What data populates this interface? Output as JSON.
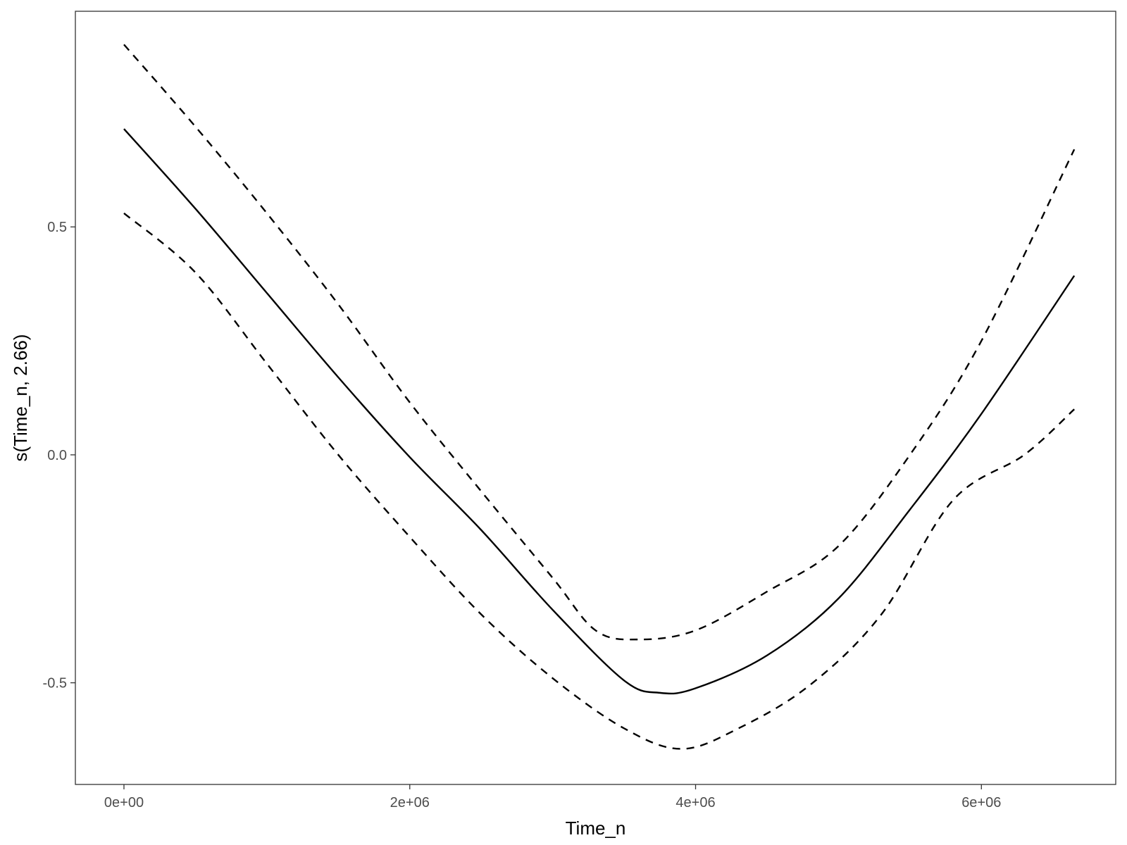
{
  "chart_data": {
    "type": "line",
    "title": "",
    "xlabel": "Time_n",
    "ylabel": "s(Time_n, 2.66)",
    "xlim": [
      -340000,
      6940000
    ],
    "ylim": [
      -0.723,
      0.973
    ],
    "grid": false,
    "x_ticks": [
      0,
      2000000,
      4000000,
      6000000
    ],
    "x_tick_labels": [
      "0e+00",
      "2e+06",
      "4e+06",
      "6e+06"
    ],
    "y_ticks": [
      -0.5,
      0.0,
      0.5
    ],
    "y_tick_labels": [
      "-0.5",
      "0.0",
      "0.5"
    ],
    "series": [
      {
        "style": "solid",
        "points": [
          [
            0,
            0.715
          ],
          [
            500000,
            0.54
          ],
          [
            1000000,
            0.355
          ],
          [
            1500000,
            0.17
          ],
          [
            2000000,
            -0.005
          ],
          [
            2500000,
            -0.165
          ],
          [
            3000000,
            -0.34
          ],
          [
            3500000,
            -0.495
          ],
          [
            3750000,
            -0.522
          ],
          [
            4000000,
            -0.512
          ],
          [
            4500000,
            -0.44
          ],
          [
            5000000,
            -0.315
          ],
          [
            5500000,
            -0.12
          ],
          [
            6000000,
            0.09
          ],
          [
            6650000,
            0.393
          ]
        ]
      },
      {
        "style": "dashed",
        "points": [
          [
            0,
            0.9
          ],
          [
            500000,
            0.72
          ],
          [
            1000000,
            0.53
          ],
          [
            1500000,
            0.33
          ],
          [
            2000000,
            0.115
          ],
          [
            2500000,
            -0.08
          ],
          [
            3000000,
            -0.27
          ],
          [
            3300000,
            -0.385
          ],
          [
            3600000,
            -0.405
          ],
          [
            4000000,
            -0.385
          ],
          [
            4500000,
            -0.3
          ],
          [
            5000000,
            -0.2
          ],
          [
            5500000,
            0.0
          ],
          [
            6000000,
            0.25
          ],
          [
            6650000,
            0.67
          ]
        ]
      },
      {
        "style": "dashed",
        "points": [
          [
            0,
            0.53
          ],
          [
            500000,
            0.4
          ],
          [
            1000000,
            0.2
          ],
          [
            1500000,
            0.0
          ],
          [
            2000000,
            -0.18
          ],
          [
            2500000,
            -0.35
          ],
          [
            3000000,
            -0.49
          ],
          [
            3500000,
            -0.6
          ],
          [
            3900000,
            -0.645
          ],
          [
            4300000,
            -0.6
          ],
          [
            4800000,
            -0.505
          ],
          [
            5300000,
            -0.35
          ],
          [
            5800000,
            -0.1
          ],
          [
            6300000,
            0.0
          ],
          [
            6650000,
            0.1
          ]
        ]
      }
    ]
  }
}
